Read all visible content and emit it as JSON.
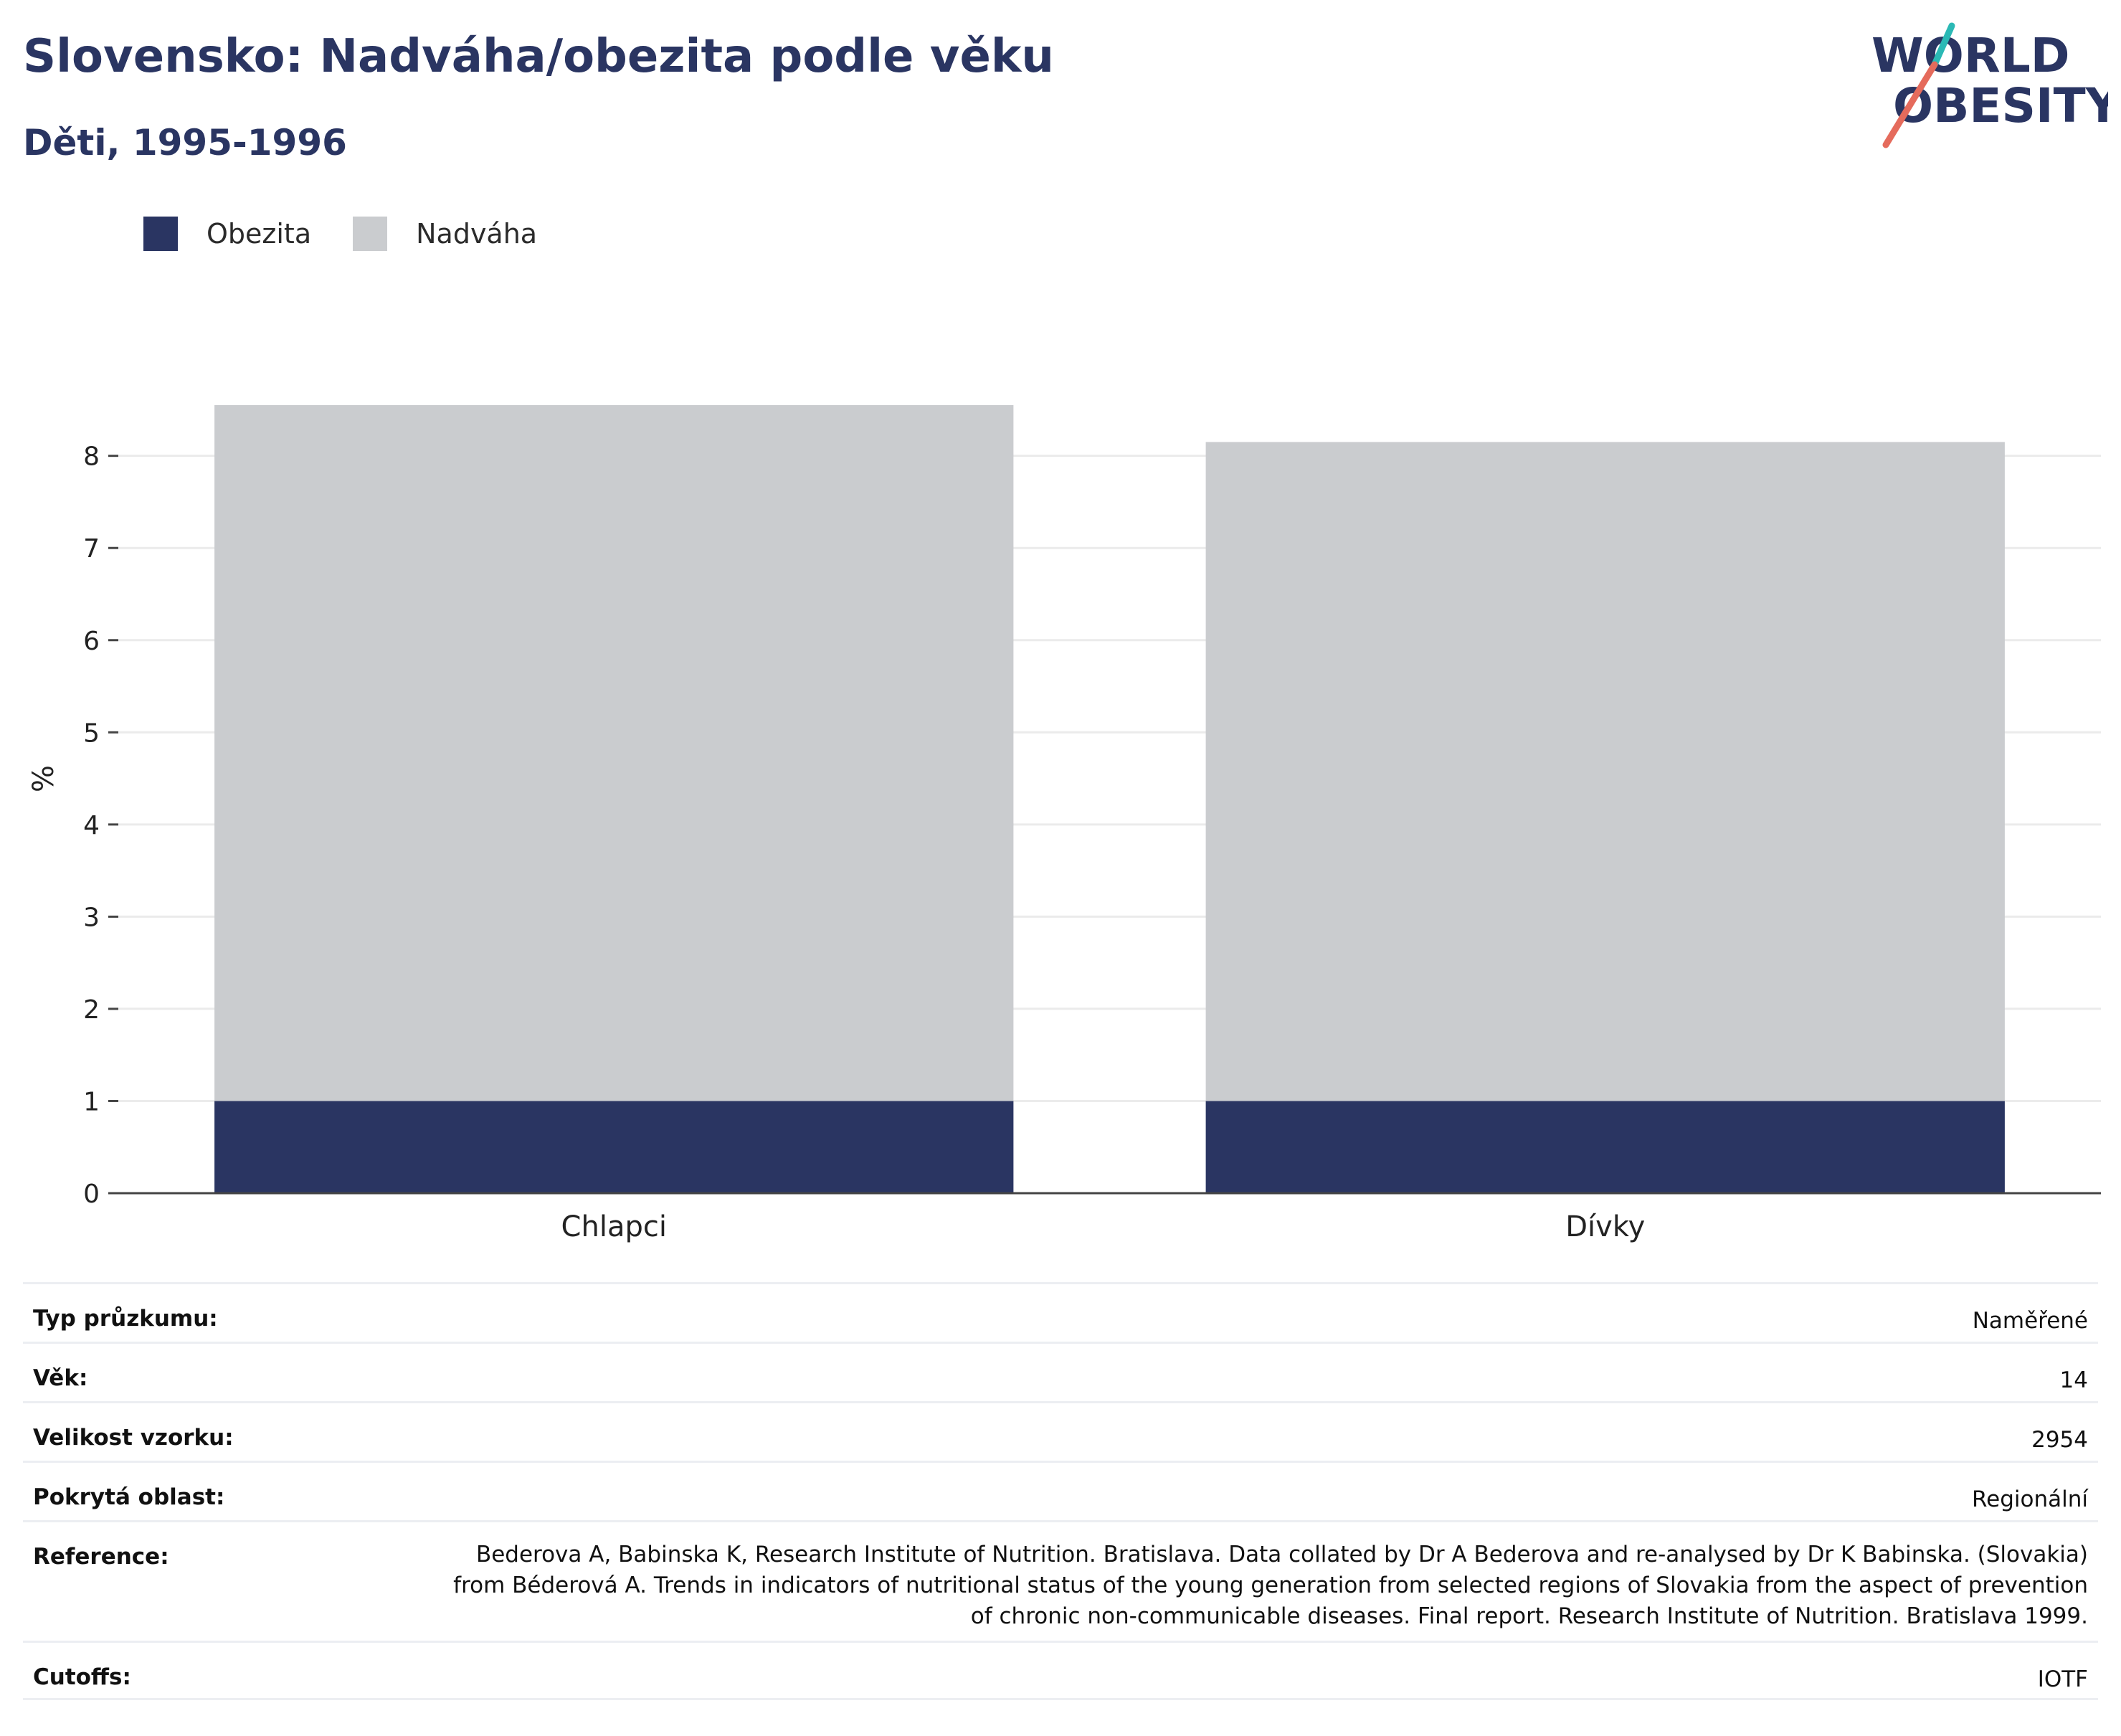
{
  "header": {
    "title": "Slovensko: Nadváha/obezita podle věku",
    "subtitle": "Děti, 1995-1996"
  },
  "logo": {
    "line1": "WORLD",
    "line2": "OBESITY"
  },
  "colors": {
    "obezita": "#2a3562",
    "nadvaha": "#cacccf",
    "accent_teal": "#2bb9b5",
    "accent_red": "#e56b5c"
  },
  "legend": [
    {
      "label": "Obezita",
      "color": "#2a3562"
    },
    {
      "label": "Nadváha",
      "color": "#cacccf"
    }
  ],
  "chart_data": {
    "type": "bar",
    "stacked": true,
    "categories": [
      "Chlapci",
      "Dívky"
    ],
    "series": [
      {
        "name": "Obezita",
        "values": [
          1.0,
          1.0
        ]
      },
      {
        "name": "Nadváha",
        "values": [
          7.55,
          7.15
        ]
      }
    ],
    "ylabel": "%",
    "ylim": [
      0,
      8.9
    ],
    "yticks": [
      0,
      1,
      2,
      3,
      4,
      5,
      6,
      7,
      8
    ],
    "grid": true,
    "legend_position": "top-left"
  },
  "info_table": [
    {
      "key": "Typ průzkumu:",
      "value": "Naměřené"
    },
    {
      "key": "Věk:",
      "value": "14"
    },
    {
      "key": "Velikost vzorku:",
      "value": "2954"
    },
    {
      "key": "Pokrytá oblast:",
      "value": "Regionální"
    },
    {
      "key": "Reference:",
      "value": "Bederova A, Babinska K, Research Institute of Nutrition. Bratislava. Data collated by Dr A Bederova and re-analysed by Dr K Babinska. (Slovakia) from Béderová A. Trends in indicators of nutritional status of the young generation from selected regions of Slovakia from the aspect of prevention of chronic non-communicable diseases. Final report. Research Institute of Nutrition. Bratislava 1999."
    },
    {
      "key": "Cutoffs:",
      "value": "IOTF"
    }
  ]
}
